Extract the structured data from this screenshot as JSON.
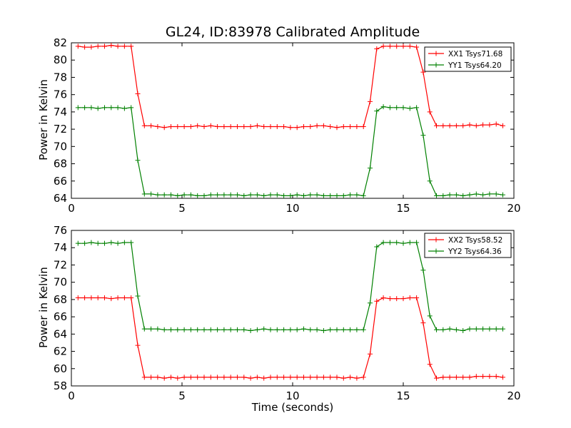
{
  "title": "GL24, ID:83978 Calibrated Amplitude",
  "colors": {
    "red": "#ff0000",
    "green": "#008000",
    "axis": "#000000",
    "background": "#ffffff"
  },
  "chart_data": [
    {
      "type": "line",
      "title": "GL24, ID:83978 Calibrated Amplitude",
      "xlabel": "",
      "ylabel": "Power in Kelvin",
      "xlim": [
        0,
        20
      ],
      "ylim": [
        64,
        82
      ],
      "xticks": [
        0,
        5,
        10,
        15,
        20
      ],
      "yticks": [
        64,
        66,
        68,
        70,
        72,
        74,
        76,
        78,
        80,
        82
      ],
      "grid": false,
      "legend_position": "top-right",
      "x": [
        0.3,
        0.6,
        0.9,
        1.2,
        1.5,
        1.8,
        2.1,
        2.4,
        2.7,
        3.0,
        3.3,
        3.6,
        3.9,
        4.2,
        4.5,
        4.8,
        5.1,
        5.4,
        5.7,
        6.0,
        6.3,
        6.6,
        6.9,
        7.2,
        7.5,
        7.8,
        8.1,
        8.4,
        8.7,
        9.0,
        9.3,
        9.6,
        9.9,
        10.2,
        10.5,
        10.8,
        11.1,
        11.4,
        11.7,
        12.0,
        12.3,
        12.6,
        12.9,
        13.2,
        13.5,
        13.8,
        14.1,
        14.4,
        14.7,
        15.0,
        15.3,
        15.6,
        15.9,
        16.2,
        16.5,
        16.8,
        17.1,
        17.4,
        17.7,
        18.0,
        18.3,
        18.6,
        18.9,
        19.2,
        19.5
      ],
      "series": [
        {
          "name": "XX1 Tsys71.68",
          "color": "#ff0000",
          "values": [
            81.6,
            81.5,
            81.5,
            81.6,
            81.6,
            81.7,
            81.6,
            81.6,
            81.6,
            76.1,
            72.4,
            72.4,
            72.3,
            72.2,
            72.3,
            72.3,
            72.3,
            72.3,
            72.4,
            72.3,
            72.4,
            72.3,
            72.3,
            72.3,
            72.3,
            72.3,
            72.3,
            72.4,
            72.3,
            72.3,
            72.3,
            72.3,
            72.2,
            72.2,
            72.3,
            72.3,
            72.4,
            72.4,
            72.3,
            72.2,
            72.3,
            72.3,
            72.3,
            72.3,
            75.2,
            81.3,
            81.6,
            81.6,
            81.6,
            81.6,
            81.6,
            81.5,
            78.6,
            74.0,
            72.4,
            72.4,
            72.4,
            72.4,
            72.4,
            72.5,
            72.4,
            72.5,
            72.5,
            72.6,
            72.4
          ]
        },
        {
          "name": "YY1 Tsys64.20",
          "color": "#008000",
          "values": [
            74.5,
            74.5,
            74.5,
            74.4,
            74.5,
            74.5,
            74.5,
            74.4,
            74.5,
            68.4,
            64.5,
            64.5,
            64.4,
            64.4,
            64.4,
            64.3,
            64.4,
            64.4,
            64.3,
            64.3,
            64.4,
            64.4,
            64.4,
            64.4,
            64.4,
            64.3,
            64.4,
            64.4,
            64.3,
            64.4,
            64.4,
            64.3,
            64.3,
            64.4,
            64.3,
            64.4,
            64.4,
            64.3,
            64.3,
            64.3,
            64.3,
            64.4,
            64.4,
            64.3,
            67.5,
            74.1,
            74.6,
            74.5,
            74.5,
            74.5,
            74.4,
            74.5,
            71.3,
            66.0,
            64.3,
            64.3,
            64.4,
            64.4,
            64.3,
            64.4,
            64.5,
            64.4,
            64.5,
            64.5,
            64.4
          ]
        }
      ]
    },
    {
      "type": "line",
      "title": "",
      "xlabel": "Time (seconds)",
      "ylabel": "Power in Kelvin",
      "xlim": [
        0,
        20
      ],
      "ylim": [
        58,
        76
      ],
      "xticks": [
        0,
        5,
        10,
        15,
        20
      ],
      "yticks": [
        58,
        60,
        62,
        64,
        66,
        68,
        70,
        72,
        74,
        76
      ],
      "grid": false,
      "legend_position": "top-right",
      "x": [
        0.3,
        0.6,
        0.9,
        1.2,
        1.5,
        1.8,
        2.1,
        2.4,
        2.7,
        3.0,
        3.3,
        3.6,
        3.9,
        4.2,
        4.5,
        4.8,
        5.1,
        5.4,
        5.7,
        6.0,
        6.3,
        6.6,
        6.9,
        7.2,
        7.5,
        7.8,
        8.1,
        8.4,
        8.7,
        9.0,
        9.3,
        9.6,
        9.9,
        10.2,
        10.5,
        10.8,
        11.1,
        11.4,
        11.7,
        12.0,
        12.3,
        12.6,
        12.9,
        13.2,
        13.5,
        13.8,
        14.1,
        14.4,
        14.7,
        15.0,
        15.3,
        15.6,
        15.9,
        16.2,
        16.5,
        16.8,
        17.1,
        17.4,
        17.7,
        18.0,
        18.3,
        18.6,
        18.9,
        19.2,
        19.5
      ],
      "series": [
        {
          "name": "XX2 Tsys58.52",
          "color": "#ff0000",
          "values": [
            68.2,
            68.2,
            68.2,
            68.2,
            68.2,
            68.1,
            68.2,
            68.2,
            68.2,
            62.7,
            59.0,
            59.0,
            59.0,
            58.9,
            59.0,
            58.9,
            59.0,
            59.0,
            59.0,
            59.0,
            59.0,
            59.0,
            59.0,
            59.0,
            59.0,
            59.0,
            58.9,
            59.0,
            58.9,
            59.0,
            59.0,
            59.0,
            59.0,
            59.0,
            59.0,
            59.0,
            59.0,
            59.0,
            59.0,
            59.0,
            58.9,
            59.0,
            58.9,
            59.0,
            61.7,
            67.8,
            68.2,
            68.1,
            68.1,
            68.1,
            68.2,
            68.2,
            65.3,
            60.5,
            58.9,
            59.0,
            59.0,
            59.0,
            59.0,
            59.0,
            59.1,
            59.1,
            59.1,
            59.1,
            59.0
          ]
        },
        {
          "name": "YY2 Tsys64.36",
          "color": "#008000",
          "values": [
            74.5,
            74.5,
            74.6,
            74.5,
            74.5,
            74.6,
            74.5,
            74.6,
            74.6,
            68.4,
            64.6,
            64.6,
            64.6,
            64.5,
            64.5,
            64.5,
            64.5,
            64.5,
            64.5,
            64.5,
            64.5,
            64.5,
            64.5,
            64.5,
            64.5,
            64.5,
            64.4,
            64.5,
            64.6,
            64.5,
            64.5,
            64.5,
            64.5,
            64.5,
            64.6,
            64.5,
            64.5,
            64.4,
            64.5,
            64.5,
            64.5,
            64.5,
            64.5,
            64.5,
            67.6,
            74.1,
            74.6,
            74.6,
            74.6,
            74.5,
            74.6,
            74.6,
            71.4,
            66.1,
            64.5,
            64.5,
            64.6,
            64.5,
            64.4,
            64.6,
            64.6,
            64.6,
            64.6,
            64.6,
            64.6
          ]
        }
      ]
    }
  ]
}
